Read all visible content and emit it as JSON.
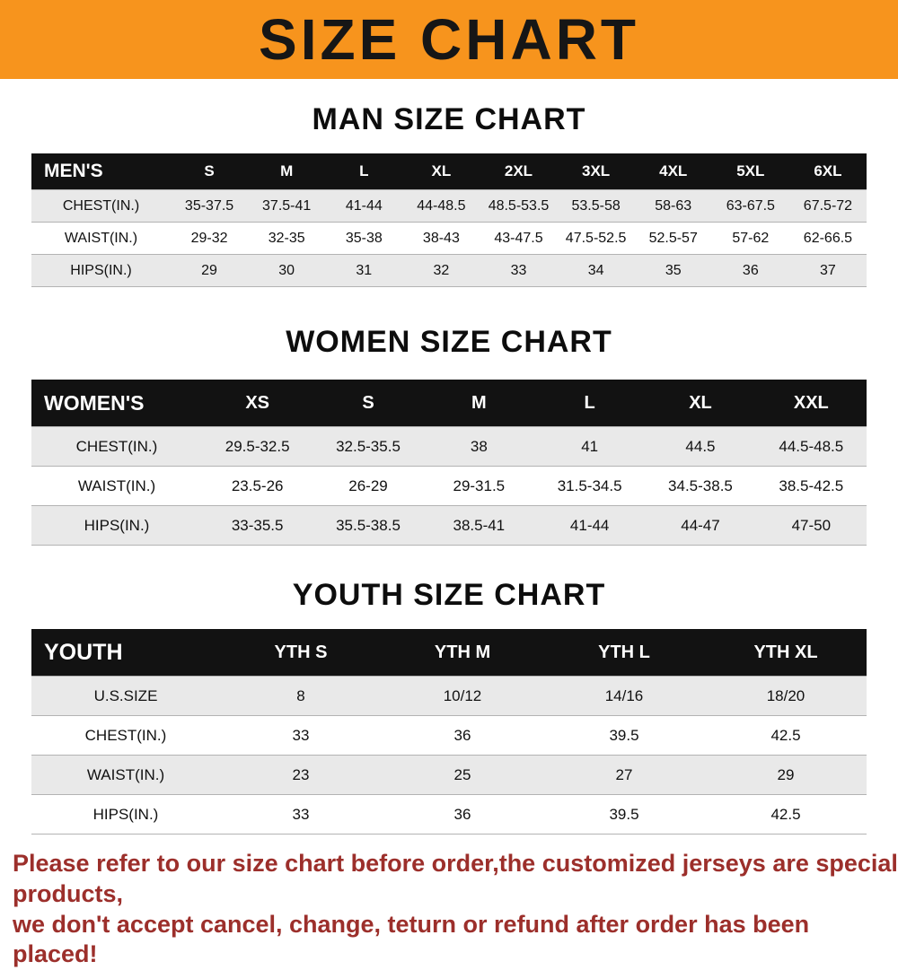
{
  "banner": {
    "title": "SIZE CHART",
    "bg_color": "#f7941d",
    "text_color": "#161616"
  },
  "sections": {
    "men_heading": "MAN SIZE CHART",
    "women_heading": "WOMEN SIZE CHART",
    "youth_heading": "YOUTH SIZE CHART"
  },
  "tables": {
    "men": {
      "title": "MEN'S",
      "sizes": [
        "S",
        "M",
        "L",
        "XL",
        "2XL",
        "3XL",
        "4XL",
        "5XL",
        "6XL"
      ],
      "rows": [
        {
          "label": "CHEST(IN.)",
          "values": [
            "35-37.5",
            "37.5-41",
            "41-44",
            "44-48.5",
            "48.5-53.5",
            "53.5-58",
            "58-63",
            "63-67.5",
            "67.5-72"
          ]
        },
        {
          "label": "WAIST(IN.)",
          "values": [
            "29-32",
            "32-35",
            "35-38",
            "38-43",
            "43-47.5",
            "47.5-52.5",
            "52.5-57",
            "57-62",
            "62-66.5"
          ]
        },
        {
          "label": "HIPS(IN.)",
          "values": [
            "29",
            "30",
            "31",
            "32",
            "33",
            "34",
            "35",
            "36",
            "37"
          ]
        }
      ]
    },
    "women": {
      "title": "WOMEN'S",
      "sizes": [
        "XS",
        "S",
        "M",
        "L",
        "XL",
        "XXL"
      ],
      "rows": [
        {
          "label": "CHEST(IN.)",
          "values": [
            "29.5-32.5",
            "32.5-35.5",
            "38",
            "41",
            "44.5",
            "44.5-48.5"
          ]
        },
        {
          "label": "WAIST(IN.)",
          "values": [
            "23.5-26",
            "26-29",
            "29-31.5",
            "31.5-34.5",
            "34.5-38.5",
            "38.5-42.5"
          ]
        },
        {
          "label": "HIPS(IN.)",
          "values": [
            "33-35.5",
            "35.5-38.5",
            "38.5-41",
            "41-44",
            "44-47",
            "47-50"
          ]
        }
      ]
    },
    "youth": {
      "title": "YOUTH",
      "sizes": [
        "YTH S",
        "YTH M",
        "YTH L",
        "YTH XL"
      ],
      "rows": [
        {
          "label": "U.S.SIZE",
          "values": [
            "8",
            "10/12",
            "14/16",
            "18/20"
          ]
        },
        {
          "label": "CHEST(IN.)",
          "values": [
            "33",
            "36",
            "39.5",
            "42.5"
          ]
        },
        {
          "label": "WAIST(IN.)",
          "values": [
            "23",
            "25",
            "27",
            "29"
          ]
        },
        {
          "label": "HIPS(IN.)",
          "values": [
            "33",
            "36",
            "39.5",
            "42.5"
          ]
        }
      ]
    }
  },
  "footer": {
    "line1": "Please refer to our size chart before order,the customized jerseys are special products,",
    "line2": "we don't accept cancel, change, teturn or refund after order has been placed!"
  }
}
